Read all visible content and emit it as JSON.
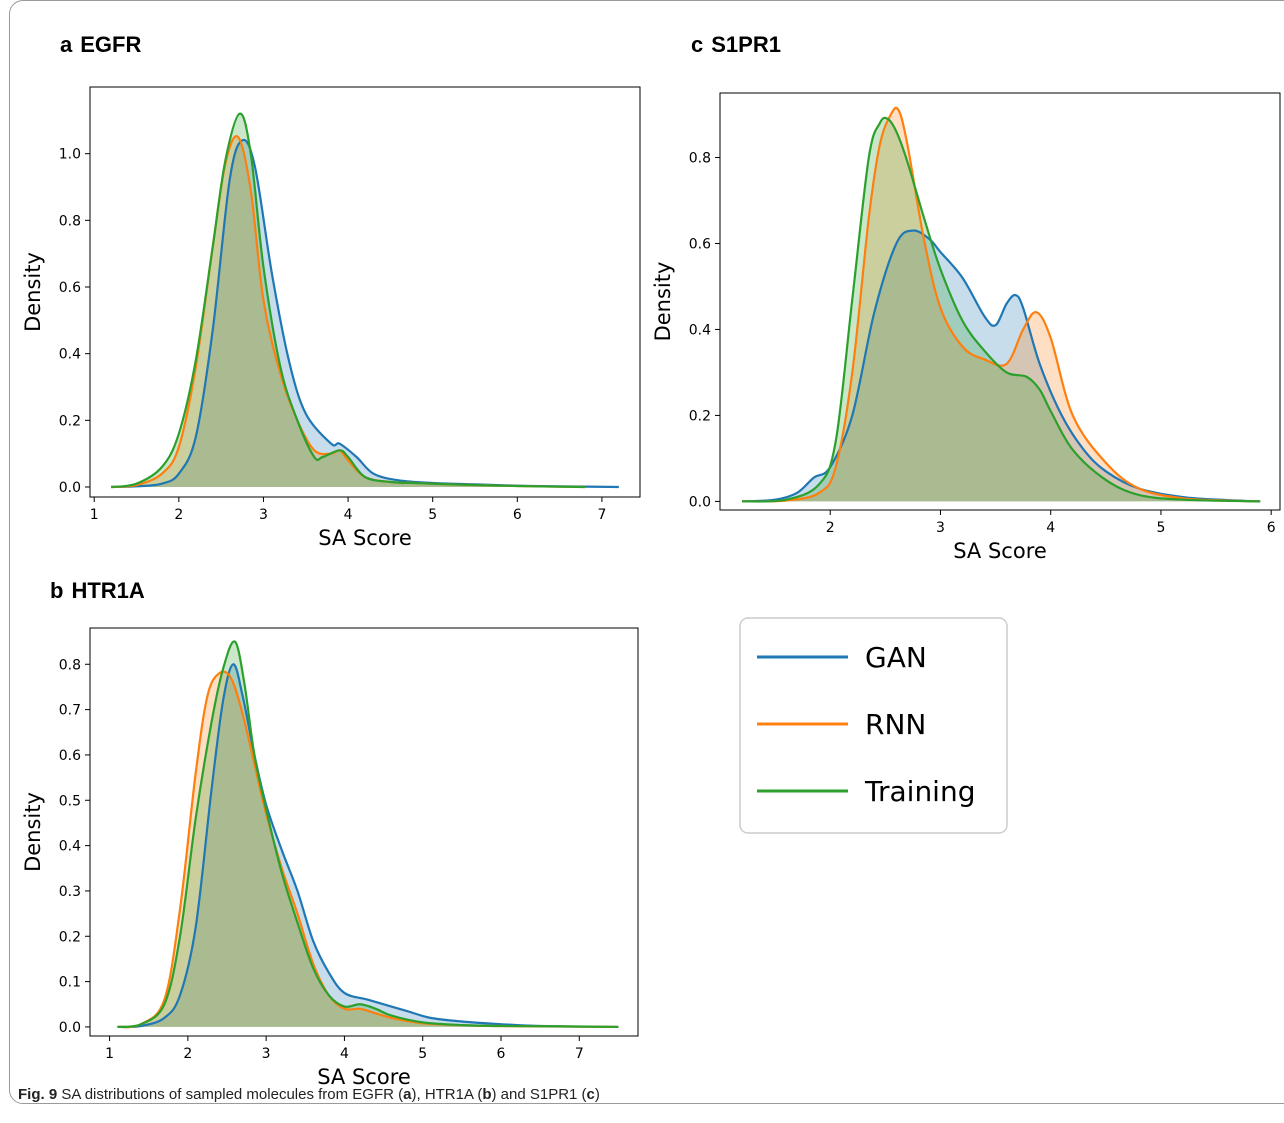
{
  "figure": {
    "caption": {
      "label": "Fig. 9",
      "parts": [
        {
          "text": " SA distributions of sampled molecules from EGFR (",
          "bold": false
        },
        {
          "text": "a",
          "bold": true
        },
        {
          "text": "), HTR1A (",
          "bold": false
        },
        {
          "text": "b",
          "bold": true
        },
        {
          "text": ") and S1PR1 (",
          "bold": false
        },
        {
          "text": "c",
          "bold": true
        },
        {
          "text": ")",
          "bold": false
        }
      ]
    },
    "colors": {
      "GAN": "#1f77b4",
      "RNN": "#ff7f0e",
      "Training": "#2ca02c"
    },
    "legend": {
      "entries": [
        "GAN",
        "RNN",
        "Training"
      ]
    }
  },
  "chart_data": [
    {
      "type": "area",
      "panel_letter": "a",
      "title": "EGFR",
      "xlabel": "SA Score",
      "ylabel": "Density",
      "xlim": [
        0.95,
        7.45
      ],
      "ylim": [
        -0.03,
        1.2
      ],
      "xticks": [
        1,
        2,
        3,
        4,
        5,
        6,
        7
      ],
      "yticks": [
        0.0,
        0.2,
        0.4,
        0.6,
        0.8,
        1.0
      ],
      "ytick_labels": [
        "0.0",
        "0.2",
        "0.4",
        "0.6",
        "0.8",
        "1.0"
      ],
      "series": [
        {
          "name": "GAN",
          "x": [
            1.2,
            1.5,
            1.8,
            2.0,
            2.2,
            2.4,
            2.6,
            2.75,
            2.9,
            3.1,
            3.3,
            3.5,
            3.8,
            3.9,
            4.1,
            4.3,
            4.6,
            5.0,
            5.5,
            6.0,
            6.5,
            7.2
          ],
          "y": [
            0,
            0.002,
            0.01,
            0.04,
            0.15,
            0.47,
            0.92,
            1.04,
            0.96,
            0.64,
            0.38,
            0.22,
            0.13,
            0.13,
            0.09,
            0.04,
            0.02,
            0.012,
            0.008,
            0.004,
            0.002,
            0
          ]
        },
        {
          "name": "RNN",
          "x": [
            1.2,
            1.5,
            1.8,
            2.0,
            2.2,
            2.4,
            2.55,
            2.7,
            2.85,
            3.0,
            3.2,
            3.4,
            3.6,
            3.8,
            3.9,
            4.0,
            4.2,
            4.5,
            4.8,
            5.2,
            6.0,
            6.8
          ],
          "y": [
            0,
            0.006,
            0.04,
            0.12,
            0.36,
            0.72,
            0.97,
            1.05,
            0.89,
            0.56,
            0.34,
            0.2,
            0.11,
            0.1,
            0.11,
            0.08,
            0.03,
            0.015,
            0.012,
            0.008,
            0.003,
            0
          ]
        },
        {
          "name": "Training",
          "x": [
            1.2,
            1.5,
            1.8,
            2.0,
            2.2,
            2.4,
            2.55,
            2.72,
            2.85,
            3.0,
            3.2,
            3.4,
            3.6,
            3.7,
            3.9,
            4.0,
            4.2,
            4.5,
            4.8,
            5.2,
            6.0,
            6.8
          ],
          "y": [
            0,
            0.01,
            0.06,
            0.16,
            0.38,
            0.72,
            0.98,
            1.12,
            1.0,
            0.66,
            0.36,
            0.2,
            0.09,
            0.09,
            0.11,
            0.09,
            0.03,
            0.015,
            0.012,
            0.008,
            0.003,
            0
          ]
        }
      ]
    },
    {
      "type": "area",
      "panel_letter": "b",
      "title": "HTR1A",
      "xlabel": "SA Score",
      "ylabel": "Density",
      "xlim": [
        0.75,
        7.75
      ],
      "ylim": [
        -0.02,
        0.88
      ],
      "xticks": [
        1,
        2,
        3,
        4,
        5,
        6,
        7
      ],
      "yticks": [
        0.0,
        0.1,
        0.2,
        0.3,
        0.4,
        0.5,
        0.6,
        0.7,
        0.8
      ],
      "ytick_labels": [
        "0.0",
        "0.1",
        "0.2",
        "0.3",
        "0.4",
        "0.5",
        "0.6",
        "0.7",
        "0.8"
      ],
      "series": [
        {
          "name": "GAN",
          "x": [
            1.1,
            1.4,
            1.7,
            1.9,
            2.1,
            2.3,
            2.45,
            2.58,
            2.7,
            2.85,
            3.0,
            3.2,
            3.4,
            3.6,
            3.8,
            4.0,
            4.3,
            4.6,
            4.8,
            5.1,
            5.5,
            6.0,
            6.5,
            7.5
          ],
          "y": [
            0,
            0.002,
            0.02,
            0.07,
            0.22,
            0.52,
            0.72,
            0.8,
            0.73,
            0.6,
            0.49,
            0.39,
            0.3,
            0.19,
            0.12,
            0.075,
            0.06,
            0.045,
            0.035,
            0.02,
            0.012,
            0.006,
            0.002,
            0
          ]
        },
        {
          "name": "RNN",
          "x": [
            1.1,
            1.4,
            1.7,
            1.9,
            2.1,
            2.25,
            2.4,
            2.55,
            2.7,
            2.85,
            3.0,
            3.2,
            3.4,
            3.6,
            3.8,
            4.0,
            4.2,
            4.4,
            4.6,
            5.0,
            5.5,
            6.0,
            7.5
          ],
          "y": [
            0,
            0.006,
            0.06,
            0.26,
            0.56,
            0.73,
            0.78,
            0.77,
            0.69,
            0.58,
            0.47,
            0.35,
            0.25,
            0.14,
            0.07,
            0.04,
            0.04,
            0.03,
            0.02,
            0.008,
            0.004,
            0.002,
            0
          ]
        },
        {
          "name": "Training",
          "x": [
            1.1,
            1.4,
            1.7,
            1.9,
            2.1,
            2.3,
            2.45,
            2.6,
            2.72,
            2.85,
            3.0,
            3.2,
            3.4,
            3.6,
            3.8,
            4.0,
            4.2,
            4.4,
            4.6,
            5.0,
            5.5,
            6.0,
            7.0,
            7.5
          ],
          "y": [
            0,
            0.006,
            0.05,
            0.2,
            0.46,
            0.67,
            0.79,
            0.85,
            0.76,
            0.6,
            0.48,
            0.34,
            0.23,
            0.13,
            0.07,
            0.045,
            0.05,
            0.04,
            0.025,
            0.01,
            0.004,
            0.002,
            0.001,
            0
          ]
        }
      ]
    },
    {
      "type": "area",
      "panel_letter": "c",
      "title": "S1PR1",
      "xlabel": "SA Score",
      "ylabel": "Density",
      "xlim": [
        1.0,
        6.08
      ],
      "ylim": [
        -0.02,
        0.95
      ],
      "xticks": [
        2,
        3,
        4,
        5,
        6
      ],
      "yticks": [
        0.0,
        0.2,
        0.4,
        0.6,
        0.8
      ],
      "ytick_labels": [
        "0.0",
        "0.2",
        "0.4",
        "0.6",
        "0.8"
      ],
      "series": [
        {
          "name": "GAN",
          "x": [
            1.2,
            1.5,
            1.7,
            1.85,
            2.0,
            2.2,
            2.4,
            2.6,
            2.75,
            2.9,
            3.0,
            3.2,
            3.4,
            3.5,
            3.6,
            3.68,
            3.75,
            3.9,
            4.1,
            4.3,
            4.5,
            4.8,
            5.2,
            5.6,
            5.9
          ],
          "y": [
            0,
            0.004,
            0.02,
            0.055,
            0.08,
            0.2,
            0.44,
            0.6,
            0.63,
            0.61,
            0.58,
            0.52,
            0.43,
            0.41,
            0.46,
            0.48,
            0.45,
            0.32,
            0.2,
            0.12,
            0.07,
            0.03,
            0.01,
            0.003,
            0
          ]
        },
        {
          "name": "RNN",
          "x": [
            1.2,
            1.6,
            1.9,
            2.05,
            2.2,
            2.35,
            2.45,
            2.55,
            2.62,
            2.7,
            2.85,
            3.0,
            3.2,
            3.4,
            3.6,
            3.75,
            3.87,
            4.0,
            4.2,
            4.5,
            4.8,
            5.2,
            5.6,
            5.9
          ],
          "y": [
            0,
            0.002,
            0.02,
            0.08,
            0.3,
            0.66,
            0.83,
            0.9,
            0.91,
            0.83,
            0.61,
            0.45,
            0.36,
            0.33,
            0.32,
            0.4,
            0.44,
            0.38,
            0.2,
            0.09,
            0.03,
            0.007,
            0.002,
            0
          ]
        },
        {
          "name": "Training",
          "x": [
            1.2,
            1.6,
            1.9,
            2.05,
            2.2,
            2.35,
            2.45,
            2.52,
            2.6,
            2.7,
            2.85,
            3.0,
            3.2,
            3.4,
            3.6,
            3.78,
            3.9,
            4.0,
            4.2,
            4.5,
            4.8,
            5.2,
            5.9
          ],
          "y": [
            0,
            0.004,
            0.04,
            0.14,
            0.47,
            0.8,
            0.88,
            0.89,
            0.86,
            0.79,
            0.66,
            0.54,
            0.42,
            0.35,
            0.3,
            0.29,
            0.26,
            0.21,
            0.12,
            0.05,
            0.015,
            0.004,
            0
          ]
        }
      ]
    }
  ]
}
